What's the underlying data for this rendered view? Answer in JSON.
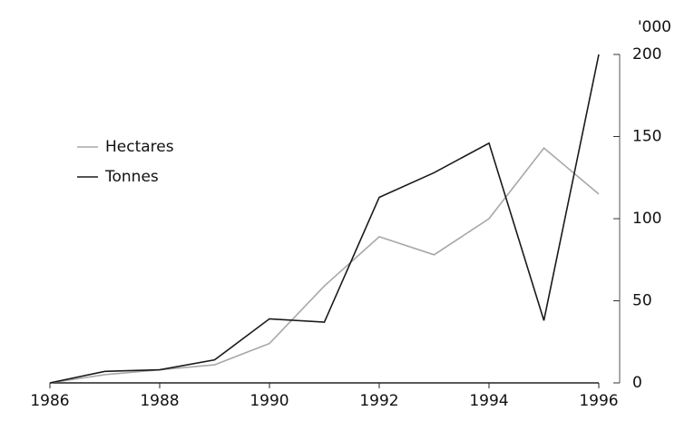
{
  "chart_data": {
    "type": "line",
    "y_label": "'000",
    "xlim": [
      1986,
      1996
    ],
    "xticks": [
      1986,
      1988,
      1990,
      1992,
      1994,
      1996
    ],
    "ylim": [
      0,
      200
    ],
    "yticks": [
      0,
      50,
      100,
      150,
      200
    ],
    "x": [
      1986,
      1987,
      1988,
      1989,
      1990,
      1991,
      1992,
      1993,
      1994,
      1995,
      1996
    ],
    "series": [
      {
        "name": "Hectares",
        "color": "#a8a8a8",
        "values": [
          0,
          5,
          8,
          11,
          24,
          59,
          89,
          78,
          100,
          143,
          115
        ]
      },
      {
        "name": "Tonnes",
        "color": "#1a1a1a",
        "values": [
          0,
          7,
          8,
          14,
          39,
          37,
          113,
          128,
          146,
          38,
          200
        ]
      }
    ]
  }
}
